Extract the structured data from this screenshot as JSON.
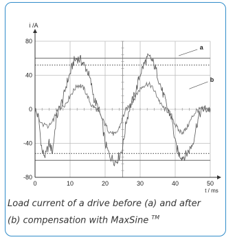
{
  "chart_data": {
    "type": "line",
    "title": "",
    "ylabel": "i /A",
    "xlabel": "t / ms",
    "xlim": [
      0,
      50
    ],
    "ylim": [
      -80,
      80
    ],
    "x_ticks": [
      0,
      10,
      20,
      30,
      40,
      50
    ],
    "x_tick_labels": [
      "0",
      "10",
      "20",
      "30",
      "40",
      "50"
    ],
    "y_ticks": [
      -80,
      -40,
      0,
      40,
      80
    ],
    "y_tick_labels": [
      "-80",
      "-40",
      "0",
      "40",
      "80"
    ],
    "grid": true,
    "reference_lines": [
      {
        "name": "a",
        "style": "solid",
        "y": [
          60,
          -60
        ]
      },
      {
        "name": "b",
        "style": "dotted",
        "y": [
          52,
          -52
        ]
      }
    ],
    "series": [
      {
        "name": "a",
        "style": "spiky",
        "x": [
          0,
          1,
          2,
          3,
          4,
          5,
          6,
          7,
          8,
          9,
          10,
          11,
          12,
          13,
          14,
          15,
          16,
          17,
          18,
          19,
          20,
          21,
          22,
          23,
          24,
          25,
          26,
          27,
          28,
          29,
          30,
          31,
          32,
          33,
          34,
          35,
          36,
          37,
          38,
          39,
          40,
          41,
          42,
          43,
          44,
          45,
          46,
          47,
          48,
          49,
          50
        ],
        "y": [
          0,
          -10,
          -50,
          -55,
          -40,
          -50,
          -12,
          2,
          12,
          30,
          42,
          56,
          60,
          58,
          52,
          45,
          30,
          10,
          2,
          -12,
          -40,
          -52,
          -58,
          -62,
          -55,
          -45,
          -15,
          2,
          12,
          25,
          42,
          52,
          60,
          60,
          52,
          40,
          25,
          12,
          -2,
          -10,
          -40,
          -52,
          -56,
          -54,
          -48,
          -40,
          -20,
          -5,
          0,
          0,
          0
        ]
      },
      {
        "name": "b",
        "style": "smooth",
        "x": [
          0,
          2,
          4,
          5,
          6,
          7,
          8,
          9,
          10,
          11,
          12,
          13,
          14,
          15,
          16,
          17,
          18,
          19,
          20,
          21,
          22,
          23,
          24,
          25,
          26,
          27,
          28,
          29,
          30,
          31,
          32,
          33,
          34,
          35,
          36,
          37,
          38,
          39,
          40,
          41,
          42,
          43,
          44,
          45,
          46,
          47,
          48,
          50
        ],
        "y": [
          0,
          -18,
          -20,
          -15,
          -5,
          2,
          4,
          8,
          16,
          22,
          28,
          28,
          24,
          15,
          5,
          2,
          -2,
          -10,
          -18,
          -25,
          -28,
          -30,
          -22,
          -10,
          0,
          4,
          10,
          18,
          24,
          28,
          30,
          28,
          22,
          14,
          5,
          0,
          -2,
          -8,
          -18,
          -25,
          -27,
          -24,
          -16,
          -8,
          -2,
          0,
          0,
          0
        ]
      }
    ],
    "annotations": [
      {
        "label": "a",
        "x": 41,
        "y": 63
      },
      {
        "label": "b",
        "x": 44,
        "y": 24
      }
    ]
  },
  "caption": {
    "text": "Load current of a drive before (a) and after (b) compensation with MaxSine",
    "trademark": "TM"
  }
}
